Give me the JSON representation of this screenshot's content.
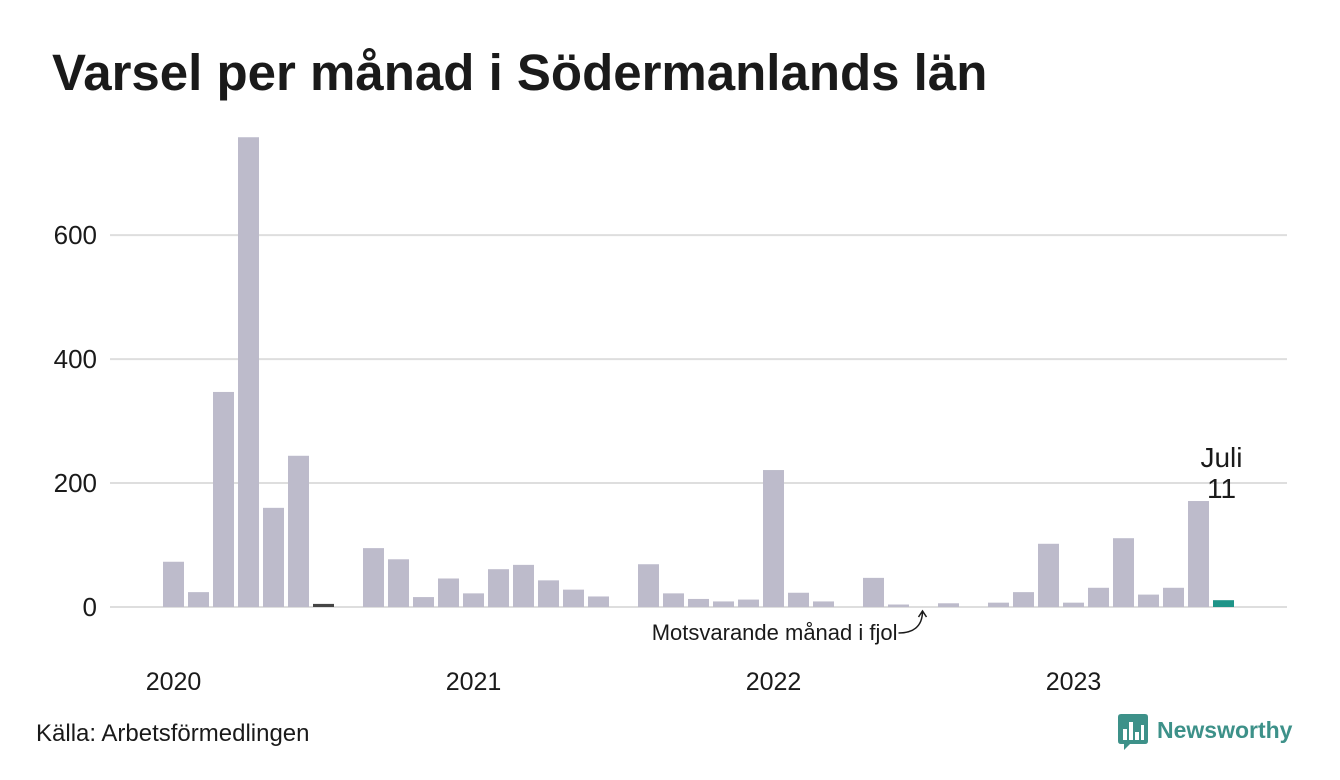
{
  "source": "Källa: Arbetsförmedlingen",
  "logo": {
    "text": "Newsworthy",
    "icon": "chart-speech-bubble-icon"
  },
  "colors": {
    "bar": "#bdbbcb",
    "same_month_prior_years": "#454545",
    "current_month": "#1f9488",
    "grid": "#dedede",
    "text": "#1a1a1a",
    "brand": "#3d9189"
  },
  "chart_data": {
    "type": "bar",
    "title": "Varsel per månad i Södermanlands län",
    "x": [
      "2020-01",
      "2020-02",
      "2020-03",
      "2020-04",
      "2020-05",
      "2020-06",
      "2020-07",
      "2020-08",
      "2020-09",
      "2020-10",
      "2020-11",
      "2020-12",
      "2021-01",
      "2021-02",
      "2021-03",
      "2021-04",
      "2021-05",
      "2021-06",
      "2021-07",
      "2021-08",
      "2021-09",
      "2021-10",
      "2021-11",
      "2021-12",
      "2022-01",
      "2022-02",
      "2022-03",
      "2022-04",
      "2022-05",
      "2022-06",
      "2022-07",
      "2022-08",
      "2022-09",
      "2022-10",
      "2022-11",
      "2022-12",
      "2023-01",
      "2023-02",
      "2023-03",
      "2023-04",
      "2023-05",
      "2023-06",
      "2023-07"
    ],
    "values": [
      73,
      24,
      347,
      758,
      160,
      244,
      5,
      0,
      95,
      77,
      16,
      46,
      22,
      61,
      68,
      43,
      28,
      17,
      0,
      69,
      22,
      13,
      9,
      12,
      221,
      23,
      9,
      0,
      47,
      4,
      0,
      6,
      0,
      7,
      24,
      102,
      7,
      31,
      111,
      20,
      31,
      171,
      11
    ],
    "x_tick_labels": [
      {
        "x": "2020-01",
        "label": "2020"
      },
      {
        "x": "2021-01",
        "label": "2021"
      },
      {
        "x": "2022-01",
        "label": "2022"
      },
      {
        "x": "2023-01",
        "label": "2023"
      }
    ],
    "y_ticks": [
      0,
      200,
      400,
      600
    ],
    "ylim": [
      0,
      760
    ],
    "grid": "horizontal",
    "highlight": {
      "x": "2023-07",
      "month_label": "Juli",
      "value_label": "11"
    },
    "annotation": {
      "x": "2022-07",
      "text": "Motsvarande månad i fjol"
    }
  }
}
